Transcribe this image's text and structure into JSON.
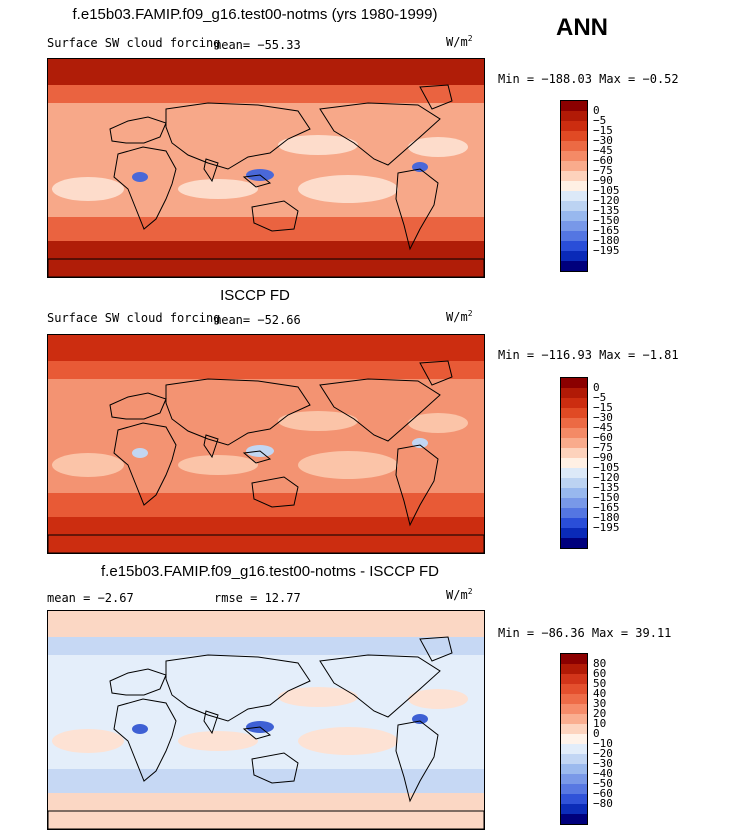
{
  "season": "ANN",
  "panels": [
    {
      "title": "f.e15b03.FAMIP.f09_g16.test00-notms (yrs 1980-1999)",
      "variable": "Surface SW cloud forcing",
      "stat": "mean=  −55.33",
      "units": "W/m",
      "units_exp": "2",
      "minmax": "Min = −188.03  Max =  −0.52",
      "colorbar": {
        "labels": [
          "0",
          "−5",
          "−15",
          "−30",
          "−45",
          "−60",
          "−75",
          "−90",
          "−105",
          "−120",
          "−135",
          "−150",
          "−165",
          "−180",
          "−195"
        ],
        "colors": [
          "#8b0000",
          "#b11a06",
          "#cc2d10",
          "#e04a24",
          "#ec6a44",
          "#f48a66",
          "#f9ab8c",
          "#fdd2bc",
          "#fff0e4",
          "#dce9f8",
          "#bcd3f2",
          "#98b8ee",
          "#7898e8",
          "#5476e2",
          "#2a4ed8",
          "#0a2ab8",
          "#00007c"
        ]
      },
      "map_colors": {
        "base": "#f7a889",
        "polar": "#b01d08",
        "band": "#ea6340",
        "subtropic": "#fddccb",
        "blue": "#4a68d8"
      }
    },
    {
      "title": "ISCCP FD",
      "variable": "Surface SW cloud forcing",
      "stat": "mean=  −52.66",
      "units": "W/m",
      "units_exp": "2",
      "minmax": "Min = −116.93  Max =  −1.81",
      "colorbar": {
        "labels": [
          "0",
          "−5",
          "−15",
          "−30",
          "−45",
          "−60",
          "−75",
          "−90",
          "−105",
          "−120",
          "−135",
          "−150",
          "−165",
          "−180",
          "−195"
        ],
        "colors": [
          "#8b0000",
          "#b11a06",
          "#cc2d10",
          "#e04a24",
          "#ec6a44",
          "#f48a66",
          "#f9ab8c",
          "#fdd2bc",
          "#fff0e4",
          "#dce9f8",
          "#bcd3f2",
          "#98b8ee",
          "#7898e8",
          "#5476e2",
          "#2a4ed8",
          "#0a2ab8",
          "#00007c"
        ]
      },
      "map_colors": {
        "base": "#f39372",
        "polar": "#cc2d10",
        "band": "#e85a36",
        "subtropic": "#fbc4a8",
        "blue": "#c2d6f2"
      }
    },
    {
      "title": "f.e15b03.FAMIP.f09_g16.test00-notms - ISCCP FD",
      "variable": "",
      "stat_mean": "mean =   −2.67",
      "stat_rmse": "rmse =   12.77",
      "units": "W/m",
      "units_exp": "2",
      "minmax": "Min = −86.36  Max =  39.11",
      "colorbar": {
        "labels": [
          "80",
          "60",
          "50",
          "40",
          "30",
          "20",
          "10",
          "0",
          "−10",
          "−20",
          "−30",
          "−40",
          "−50",
          "−60",
          "−80"
        ],
        "colors": [
          "#8b0000",
          "#b11a06",
          "#d2351a",
          "#e4502e",
          "#ee6c48",
          "#f68c6a",
          "#faae90",
          "#fdd4bf",
          "#fff3ea",
          "#e2edfa",
          "#c2d6f4",
          "#9cbaee",
          "#7a99e8",
          "#5878e2",
          "#3052d8",
          "#0c2cb8",
          "#00007c"
        ]
      },
      "map_colors": {
        "base": "#e4eefa",
        "polar": "#fbd7c4",
        "band": "#c6d8f4",
        "subtropic": "#fde2d4",
        "blue": "#3e60d4"
      }
    }
  ]
}
